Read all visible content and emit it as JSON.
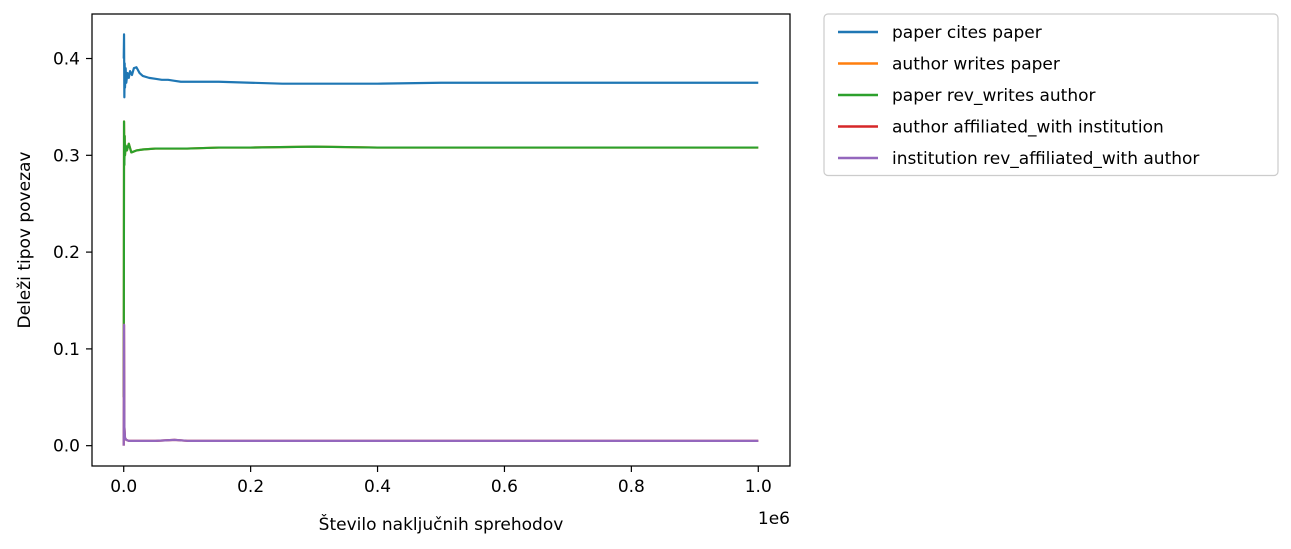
{
  "chart_data": {
    "type": "line",
    "xlabel": "Število naključnih sprehodov",
    "ylabel": "Deleži tipov povezav",
    "x_offset_label": "1e6",
    "x_multiplier": 1000000,
    "xlim": [
      -50000,
      1050000
    ],
    "ylim": [
      -0.021,
      0.446
    ],
    "x_ticks": [
      0,
      200000,
      400000,
      600000,
      800000,
      1000000
    ],
    "x_tick_labels": [
      "0.0",
      "0.2",
      "0.4",
      "0.6",
      "0.8",
      "1.0"
    ],
    "y_ticks": [
      0.0,
      0.1,
      0.2,
      0.3,
      0.4
    ],
    "y_tick_labels": [
      "0.0",
      "0.1",
      "0.2",
      "0.3",
      "0.4"
    ],
    "grid": false,
    "legend_position": "outside-right-top",
    "series": [
      {
        "name": "paper cites paper",
        "color": "#1f77b4",
        "x": [
          0,
          500,
          1000,
          1500,
          2000,
          3000,
          4000,
          6000,
          8000,
          10000,
          13000,
          16000,
          20000,
          25000,
          30000,
          40000,
          50000,
          60000,
          70000,
          80000,
          90000,
          100000,
          120000,
          150000,
          200000,
          250000,
          300000,
          350000,
          400000,
          500000,
          600000,
          700000,
          800000,
          900000,
          1000000
        ],
        "values": [
          0.4,
          0.425,
          0.36,
          0.395,
          0.37,
          0.39,
          0.375,
          0.385,
          0.38,
          0.387,
          0.383,
          0.39,
          0.391,
          0.385,
          0.382,
          0.38,
          0.379,
          0.378,
          0.378,
          0.377,
          0.376,
          0.376,
          0.376,
          0.376,
          0.375,
          0.374,
          0.374,
          0.374,
          0.374,
          0.375,
          0.375,
          0.375,
          0.375,
          0.375,
          0.375
        ]
      },
      {
        "name": "author writes paper",
        "color": "#ff7f0e",
        "x": [
          0,
          500,
          1000,
          1500,
          2000,
          3000,
          5000,
          8000,
          12000,
          20000,
          30000,
          50000,
          80000,
          100000,
          150000,
          200000,
          300000,
          400000,
          500000,
          600000,
          700000,
          800000,
          900000,
          1000000
        ],
        "values": [
          0.05,
          0.335,
          0.29,
          0.32,
          0.3,
          0.31,
          0.305,
          0.312,
          0.303,
          0.305,
          0.306,
          0.307,
          0.307,
          0.307,
          0.308,
          0.308,
          0.309,
          0.308,
          0.308,
          0.308,
          0.308,
          0.308,
          0.308,
          0.308
        ]
      },
      {
        "name": "paper rev_writes author",
        "color": "#2ca02c",
        "x": [
          0,
          500,
          1000,
          1500,
          2000,
          3000,
          5000,
          8000,
          12000,
          20000,
          30000,
          50000,
          80000,
          100000,
          150000,
          200000,
          300000,
          400000,
          500000,
          600000,
          700000,
          800000,
          900000,
          1000000
        ],
        "values": [
          0.05,
          0.335,
          0.29,
          0.32,
          0.3,
          0.31,
          0.305,
          0.312,
          0.303,
          0.305,
          0.306,
          0.307,
          0.307,
          0.307,
          0.308,
          0.308,
          0.309,
          0.308,
          0.308,
          0.308,
          0.308,
          0.308,
          0.308,
          0.308
        ]
      },
      {
        "name": "author affiliated_with institution",
        "color": "#d62728",
        "x": [
          0,
          500,
          1000,
          2000,
          4000,
          8000,
          15000,
          30000,
          50000,
          80000,
          100000,
          200000,
          300000,
          400000,
          500000,
          600000,
          700000,
          800000,
          900000,
          1000000
        ],
        "values": [
          0.0,
          0.125,
          0.02,
          0.008,
          0.006,
          0.005,
          0.005,
          0.005,
          0.005,
          0.006,
          0.005,
          0.005,
          0.005,
          0.005,
          0.005,
          0.005,
          0.005,
          0.005,
          0.005,
          0.005
        ]
      },
      {
        "name": "institution rev_affiliated_with author",
        "color": "#9467bd",
        "x": [
          0,
          500,
          1000,
          2000,
          4000,
          8000,
          15000,
          30000,
          50000,
          80000,
          100000,
          200000,
          300000,
          400000,
          500000,
          600000,
          700000,
          800000,
          900000,
          1000000
        ],
        "values": [
          0.0,
          0.125,
          0.02,
          0.008,
          0.006,
          0.005,
          0.005,
          0.005,
          0.005,
          0.006,
          0.005,
          0.005,
          0.005,
          0.005,
          0.005,
          0.005,
          0.005,
          0.005,
          0.005,
          0.005
        ]
      }
    ]
  }
}
